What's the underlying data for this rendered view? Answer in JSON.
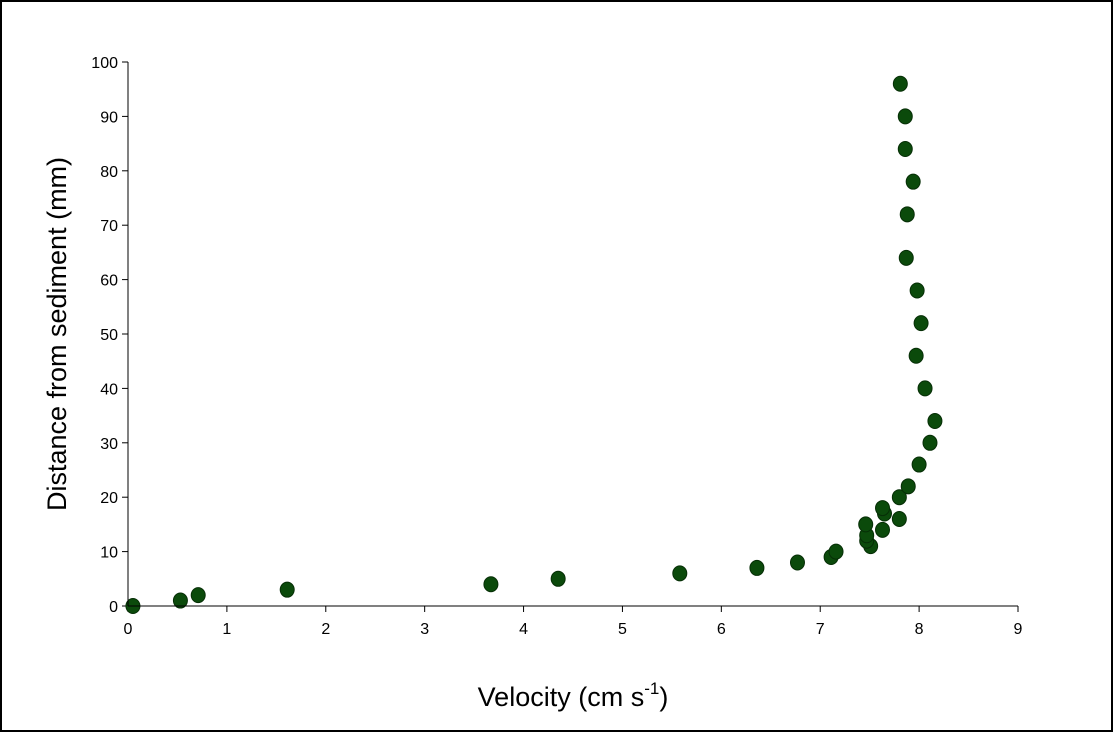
{
  "chart_data": {
    "type": "scatter",
    "title": "",
    "xlabel": "Velocity (cm s",
    "xlabel_superscript": "-1",
    "xlabel_suffix": ")",
    "ylabel": "Distance from sediment (mm)",
    "xlim": [
      0,
      9
    ],
    "ylim": [
      0,
      100
    ],
    "xticks": [
      "0",
      "1",
      "2",
      "3",
      "4",
      "5",
      "6",
      "7",
      "8",
      "9"
    ],
    "yticks": [
      "0",
      "10",
      "20",
      "30",
      "40",
      "50",
      "60",
      "70",
      "80",
      "90",
      "100"
    ],
    "grid": false,
    "legend": "none",
    "marker_color": "#0b4a0b",
    "series": [
      {
        "points": [
          {
            "x": 0.05,
            "y": 0
          },
          {
            "x": 0.53,
            "y": 1
          },
          {
            "x": 0.71,
            "y": 2
          },
          {
            "x": 1.61,
            "y": 3
          },
          {
            "x": 3.67,
            "y": 4
          },
          {
            "x": 4.35,
            "y": 5
          },
          {
            "x": 5.58,
            "y": 6
          },
          {
            "x": 6.36,
            "y": 7
          },
          {
            "x": 6.77,
            "y": 8
          },
          {
            "x": 7.11,
            "y": 9
          },
          {
            "x": 7.16,
            "y": 10
          },
          {
            "x": 7.51,
            "y": 11
          },
          {
            "x": 7.47,
            "y": 12
          },
          {
            "x": 7.47,
            "y": 13
          },
          {
            "x": 7.63,
            "y": 14
          },
          {
            "x": 7.46,
            "y": 15
          },
          {
            "x": 7.8,
            "y": 16
          },
          {
            "x": 7.65,
            "y": 17
          },
          {
            "x": 7.63,
            "y": 18
          },
          {
            "x": 7.8,
            "y": 20
          },
          {
            "x": 7.89,
            "y": 22
          },
          {
            "x": 8.0,
            "y": 26
          },
          {
            "x": 8.11,
            "y": 30
          },
          {
            "x": 8.16,
            "y": 34
          },
          {
            "x": 8.06,
            "y": 40
          },
          {
            "x": 7.97,
            "y": 46
          },
          {
            "x": 8.02,
            "y": 52
          },
          {
            "x": 7.98,
            "y": 58
          },
          {
            "x": 7.87,
            "y": 64
          },
          {
            "x": 7.88,
            "y": 72
          },
          {
            "x": 7.94,
            "y": 78
          },
          {
            "x": 7.86,
            "y": 84
          },
          {
            "x": 7.86,
            "y": 90
          },
          {
            "x": 7.81,
            "y": 96
          }
        ]
      }
    ]
  }
}
